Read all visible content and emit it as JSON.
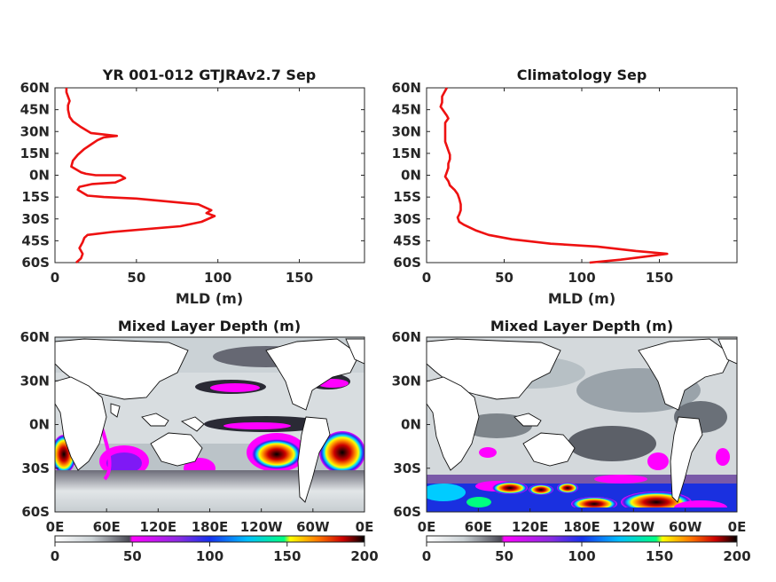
{
  "chart_data": [
    {
      "type": "line",
      "title": "YR 001-012 GTJRAv2.7 Sep",
      "xlabel": "MLD (m)",
      "ylabel": "",
      "xlim": [
        0,
        190
      ],
      "ylim": [
        -60,
        60
      ],
      "xticks": [
        "0",
        "50",
        "100",
        "150"
      ],
      "yticks": [
        "60N",
        "45N",
        "30N",
        "15N",
        "0N",
        "15S",
        "30S",
        "45S",
        "60S"
      ],
      "line_color": "#ee1111",
      "series": [
        {
          "x": [
            13,
            16,
            17,
            15,
            17,
            18,
            20,
            35,
            77,
            90,
            98,
            93,
            96,
            88,
            50,
            30,
            20,
            17,
            14,
            15,
            23,
            37,
            43,
            40,
            25,
            19,
            16,
            10,
            11,
            14,
            18,
            22,
            26,
            30,
            38,
            22,
            16,
            11,
            9,
            8,
            8,
            9,
            8,
            7,
            7
          ],
          "y": [
            -60,
            -57,
            -54,
            -50,
            -46,
            -43,
            -41,
            -39,
            -35,
            -32,
            -28,
            -26,
            -24,
            -20,
            -16,
            -15,
            -14,
            -12,
            -10,
            -8,
            -6,
            -5,
            -2,
            0,
            0,
            1,
            2,
            6,
            10,
            14,
            18,
            21,
            24,
            26,
            27,
            29,
            33,
            37,
            40,
            45,
            48,
            51,
            54,
            57,
            60
          ]
        }
      ]
    },
    {
      "type": "line",
      "title": "Climatology Sep",
      "xlabel": "MLD (m)",
      "ylabel": "",
      "xlim": [
        0,
        200
      ],
      "ylim": [
        -60,
        60
      ],
      "xticks": [
        "0",
        "50",
        "100",
        "150"
      ],
      "yticks": [
        "60N",
        "45N",
        "30N",
        "15N",
        "0N",
        "15S",
        "30S",
        "45S",
        "60S"
      ],
      "line_color": "#ee1111",
      "series": [
        {
          "x": [
            105,
            125,
            140,
            155,
            135,
            110,
            80,
            55,
            40,
            32,
            24,
            21,
            20,
            21,
            22,
            22,
            21,
            20,
            18,
            15,
            14,
            12,
            13,
            14,
            14,
            15,
            15,
            14,
            13,
            12,
            12,
            12,
            12,
            12,
            14,
            13,
            11,
            9,
            10,
            10,
            13
          ],
          "y": [
            -60,
            -58,
            -56,
            -54,
            -52,
            -49,
            -47,
            -44,
            -41,
            -38,
            -34,
            -32,
            -29,
            -27,
            -24,
            -20,
            -16,
            -13,
            -10,
            -7,
            -4,
            -1,
            2,
            5,
            8,
            11,
            14,
            17,
            20,
            23,
            26,
            30,
            33,
            36,
            39,
            41,
            44,
            47,
            50,
            54,
            60
          ]
        }
      ]
    },
    {
      "type": "heatmap",
      "title": "Mixed Layer Depth (m)",
      "xticks": [
        "0E",
        "60E",
        "120E",
        "180E",
        "120W",
        "60W",
        "0E"
      ],
      "yticks": [
        "60N",
        "30N",
        "0N",
        "30S",
        "60S"
      ],
      "colorbar": {
        "ticks": [
          "0",
          "50",
          "100",
          "150",
          "200"
        ],
        "range": [
          0,
          200
        ],
        "colors": [
          "#ffffff",
          "#b9c2c8",
          "#4a4a55",
          "#ff00ff",
          "#2a2aee",
          "#00ccff",
          "#00ff80",
          "#ffff00",
          "#ff6600",
          "#cc0000",
          "#000000"
        ]
      }
    },
    {
      "type": "heatmap",
      "title": "Mixed Layer Depth (m)",
      "xticks": [
        "0E",
        "60E",
        "120E",
        "180E",
        "120W",
        "60W",
        "0E"
      ],
      "yticks": [
        "60N",
        "30N",
        "0N",
        "30S",
        "60S"
      ],
      "colorbar": {
        "ticks": [
          "0",
          "50",
          "100",
          "150",
          "200"
        ],
        "range": [
          0,
          200
        ],
        "colors": [
          "#ffffff",
          "#b9c2c8",
          "#4a4a55",
          "#ff00ff",
          "#2a2aee",
          "#00ccff",
          "#00ff80",
          "#ffff00",
          "#ff6600",
          "#cc0000",
          "#000000"
        ]
      }
    }
  ]
}
